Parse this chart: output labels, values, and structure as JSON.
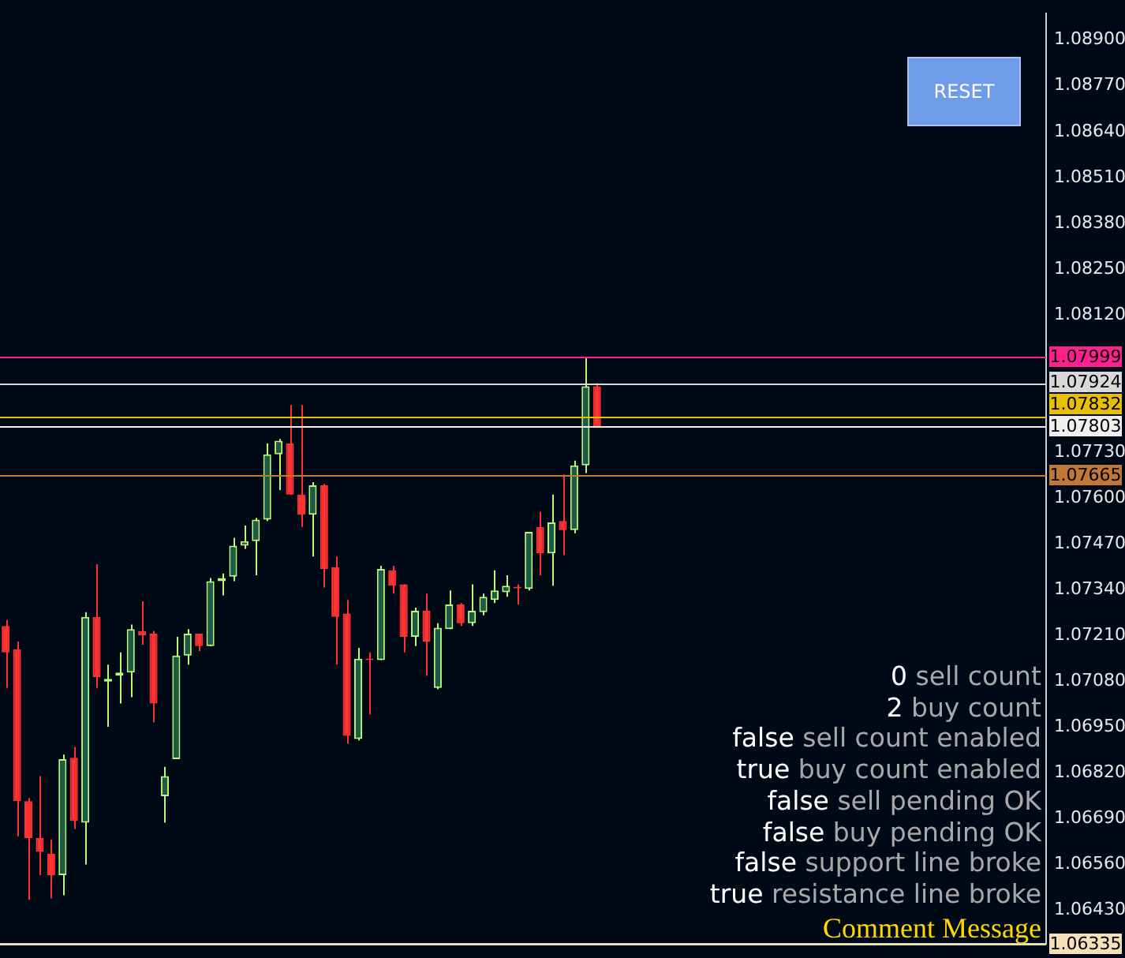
{
  "chart_data": {
    "type": "candlestick",
    "categories": [
      null,
      null,
      null,
      null,
      null,
      null,
      null,
      null,
      null,
      null,
      null,
      null,
      null,
      null,
      null,
      null,
      null,
      null,
      null,
      null,
      null,
      null,
      null,
      null,
      null,
      null,
      null,
      null,
      null,
      null,
      null,
      null,
      null,
      null,
      null,
      null,
      null,
      null,
      null,
      null,
      null,
      null,
      null,
      null,
      null,
      null,
      null,
      null,
      null,
      null,
      null,
      null,
      null,
      null,
      null,
      null,
      null,
      null,
      null,
      null,
      null,
      null,
      null,
      null,
      null,
      null,
      null,
      null,
      null,
      null,
      null,
      null,
      null,
      null,
      null,
      null,
      null,
      null,
      null,
      null,
      null,
      null,
      null,
      null,
      null,
      null,
      null,
      null,
      null,
      null,
      null,
      null
    ],
    "ohlc": [
      [
        1.07237,
        1.07254,
        1.07061,
        1.07162
      ],
      [
        1.07171,
        1.07193,
        1.0664,
        1.0674
      ],
      [
        1.0674,
        1.06749,
        1.0646,
        1.06635
      ],
      [
        1.06635,
        1.06811,
        1.0653,
        1.06596
      ],
      [
        1.06591,
        1.06631,
        1.06464,
        1.0653
      ],
      [
        1.0653,
        1.06872,
        1.06473,
        1.06859
      ],
      [
        1.06863,
        1.06894,
        1.06661,
        1.06683
      ],
      [
        1.06679,
        1.07276,
        1.0656,
        1.07263
      ],
      [
        1.07263,
        1.07412,
        1.07061,
        1.07092
      ],
      [
        1.07079,
        1.07127,
        1.06951,
        1.07087
      ],
      [
        1.07096,
        1.07162,
        1.07017,
        1.07105
      ],
      [
        1.07105,
        1.07241,
        1.07035,
        1.07228
      ],
      [
        1.07223,
        1.07307,
        1.07184,
        1.0721
      ],
      [
        1.07215,
        1.07223,
        1.06964,
        1.07017
      ],
      [
        1.06754,
        1.06837,
        1.06679,
        1.06811
      ],
      [
        1.06859,
        1.07206,
        1.06859,
        1.07153
      ],
      [
        1.07153,
        1.07228,
        1.07127,
        1.07215
      ],
      [
        1.07215,
        1.07215,
        1.07166,
        1.0718
      ],
      [
        1.0718,
        1.07373,
        1.0718,
        1.07364
      ],
      [
        1.07364,
        1.07386,
        1.07324,
        1.07373
      ],
      [
        1.07377,
        1.07487,
        1.07364,
        1.07465
      ],
      [
        1.07465,
        1.07522,
        1.07456,
        1.07478
      ],
      [
        1.07478,
        1.07544,
        1.07381,
        1.07539
      ],
      [
        1.07539,
        1.07755,
        1.07535,
        1.07724
      ],
      [
        1.07724,
        1.07768,
        1.07623,
        1.07763
      ],
      [
        1.07755,
        1.07864,
        1.0761,
        1.0761
      ],
      [
        1.0761,
        1.07864,
        1.07518,
        1.07553
      ],
      [
        1.07553,
        1.07645,
        1.07434,
        1.07636
      ],
      [
        1.07636,
        1.0764,
        1.07346,
        1.07399
      ],
      [
        1.07403,
        1.07434,
        1.07127,
        1.07263
      ],
      [
        1.07272,
        1.07311,
        1.06903,
        1.06925
      ],
      [
        1.06916,
        1.07175,
        1.06912,
        1.07144
      ],
      [
        1.07144,
        1.07162,
        1.06986,
        1.0714
      ],
      [
        1.0714,
        1.07408,
        1.0714,
        1.07399
      ],
      [
        1.07395,
        1.07408,
        1.07329,
        1.07351
      ],
      [
        1.07355,
        1.07355,
        1.07162,
        1.07206
      ],
      [
        1.07206,
        1.07289,
        1.0718,
        1.0728
      ],
      [
        1.0728,
        1.07329,
        1.07096,
        1.07193
      ],
      [
        1.07061,
        1.07245,
        1.07057,
        1.07232
      ],
      [
        1.07228,
        1.07338,
        1.07228,
        1.07298
      ],
      [
        1.07298,
        1.07302,
        1.07237,
        1.07245
      ],
      [
        1.07245,
        1.07355,
        1.07237,
        1.0728
      ],
      [
        1.07276,
        1.07329,
        1.07267,
        1.0732
      ],
      [
        1.07311,
        1.07395,
        1.07302,
        1.07338
      ],
      [
        1.07333,
        1.07381,
        1.0732,
        1.07351
      ],
      [
        1.07346,
        1.07355,
        1.07298,
        1.07344
      ],
      [
        1.07342,
        1.07504,
        1.07338,
        1.07504
      ],
      [
        1.07518,
        1.07561,
        1.07381,
        1.07443
      ],
      [
        1.07443,
        1.0761,
        1.07351,
        1.07531
      ],
      [
        1.07535,
        1.07667,
        1.07438,
        1.07509
      ],
      [
        1.07509,
        1.07706,
        1.075,
        1.07693
      ],
      [
        1.07693,
        1.07999,
        1.07671,
        1.07917
      ],
      [
        1.07917,
        1.07926,
        1.07799,
        1.07803
      ],
      null,
      null,
      null,
      null,
      null,
      null,
      null,
      null,
      null,
      null,
      null,
      null,
      null,
      null,
      null,
      null,
      null,
      null,
      null,
      null,
      null,
      null,
      null,
      null,
      null,
      null,
      null,
      null,
      null,
      null,
      null,
      null,
      null,
      null,
      null,
      null,
      null,
      null,
      null
    ],
    "ylim": [
      1.06335,
      1.08975
    ],
    "yticks": [
      {
        "value": 1.0643,
        "label": "1.06430"
      },
      {
        "value": 1.0656,
        "label": "1.06560"
      },
      {
        "value": 1.0669,
        "label": "1.06690"
      },
      {
        "value": 1.0682,
        "label": "1.06820"
      },
      {
        "value": 1.0695,
        "label": "1.06950"
      },
      {
        "value": 1.0708,
        "label": "1.07080"
      },
      {
        "value": 1.0721,
        "label": "1.07210"
      },
      {
        "value": 1.0734,
        "label": "1.07340"
      },
      {
        "value": 1.0747,
        "label": "1.07470"
      },
      {
        "value": 1.076,
        "label": "1.07600"
      },
      {
        "value": 1.0773,
        "label": "1.07730"
      },
      {
        "value": 1.0812,
        "label": "1.08120"
      },
      {
        "value": 1.0825,
        "label": "1.08250"
      },
      {
        "value": 1.0838,
        "label": "1.08380"
      },
      {
        "value": 1.0851,
        "label": "1.08510"
      },
      {
        "value": 1.0864,
        "label": "1.08640"
      },
      {
        "value": 1.0877,
        "label": "1.08770"
      },
      {
        "value": 1.089,
        "label": "1.08900"
      }
    ],
    "ref_lines": [
      {
        "axis": "y",
        "value": 1.07999,
        "label": "1.07999",
        "color": "#ff1f8f"
      },
      {
        "axis": "y",
        "value": 1.07924,
        "label": "1.07924",
        "color": "#d8d8d8"
      },
      {
        "axis": "y",
        "value": 1.07832,
        "label": "1.07832",
        "color": "#e8c000"
      },
      {
        "axis": "y",
        "value": 1.07803,
        "label": "1.07803",
        "color": "#f0f0f0"
      },
      {
        "axis": "y",
        "value": 1.07665,
        "label": "1.07665",
        "color": "#c07838"
      },
      {
        "axis": "y",
        "value": 1.06335,
        "label": "1.06335",
        "color": "#f3dfb8"
      }
    ],
    "annotations": [
      "RESET",
      "0 sell count",
      "2 buy count",
      "false sell count enabled",
      "true buy count enabled",
      "false sell pending OK",
      "false buy pending OK",
      "false support line broke",
      "true resistance line broke",
      "Comment Message"
    ],
    "grid": false,
    "legend": false
  }
}
